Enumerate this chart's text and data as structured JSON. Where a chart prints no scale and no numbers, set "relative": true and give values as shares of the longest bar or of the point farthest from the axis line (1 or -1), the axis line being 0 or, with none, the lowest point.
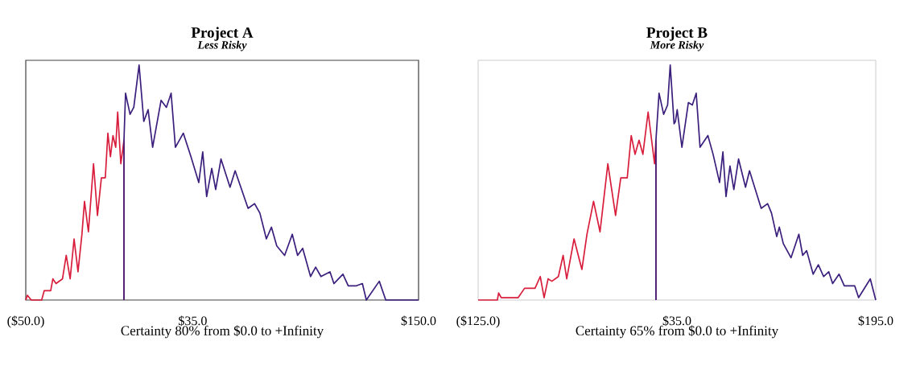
{
  "chart_data": [
    {
      "type": "line",
      "title": "Project A",
      "subtitle": "Less Risky",
      "xlabel": "Certainty 80% from $0.0 to +Infinity",
      "relative": true,
      "xlim": [
        -50,
        150
      ],
      "xticks": [
        {
          "value": -50,
          "label": "($50.0)"
        },
        {
          "value": 35,
          "label": "$35.0"
        },
        {
          "value": 150,
          "label": "$150.0"
        }
      ],
      "series": [
        {
          "color": "#d81e3c",
          "x": [
            -50,
            -49.2,
            -47.2,
            -41.9,
            -40.6,
            -37.3,
            -36.2,
            -34.6,
            -31.3,
            -29.4,
            -27.4,
            -25.4,
            -23.4,
            -21.4,
            -20.1,
            -18.1,
            -15.5,
            -13.5,
            -11.5,
            -9.5,
            -8.2,
            -6.9,
            -5.6,
            -4.2,
            -3.2,
            -1.6,
            0,
            0
          ],
          "values": [
            0,
            0.02,
            0,
            0,
            0.04,
            0.04,
            0.09,
            0.07,
            0.09,
            0.19,
            0.09,
            0.26,
            0.12,
            0.28,
            0.42,
            0.29,
            0.58,
            0.36,
            0.52,
            0.52,
            0.71,
            0.61,
            0.7,
            0.65,
            0.8,
            0.58,
            0.68,
            0
          ]
        },
        {
          "color": "#3b1f7d",
          "x": [
            0,
            0,
            0.8,
            3.1,
            5.0,
            7.7,
            10.1,
            12.3,
            14.6,
            18.9,
            21.6,
            24.0,
            26.2,
            30.2,
            34.1,
            38.1,
            40.1,
            42.1,
            44.7,
            46.7,
            49.4,
            54.0,
            56.6,
            63.2,
            66.5,
            69.2,
            72.5,
            75.1,
            77.8,
            81.8,
            85.7,
            88.4,
            91.0,
            95.0,
            97.6,
            100.3,
            104.9,
            106.9,
            111.5,
            114.2,
            118.1,
            121.4,
            123.4,
            130.0,
            133.3,
            150
          ],
          "values": [
            0,
            0.68,
            0.88,
            0.79,
            0.82,
            1.0,
            0.76,
            0.81,
            0.65,
            0.85,
            0.82,
            0.88,
            0.65,
            0.71,
            0.61,
            0.5,
            0.63,
            0.44,
            0.56,
            0.47,
            0.6,
            0.48,
            0.55,
            0.39,
            0.41,
            0.37,
            0.26,
            0.31,
            0.23,
            0.19,
            0.28,
            0.19,
            0.22,
            0.1,
            0.14,
            0.1,
            0.12,
            0.07,
            0.11,
            0.06,
            0.06,
            0.07,
            0,
            0.08,
            0,
            0
          ]
        }
      ]
    },
    {
      "type": "line",
      "title": "Project B",
      "subtitle": "More Risky",
      "xlabel": "Certainty 65% from $0.0 to +Infinity",
      "relative": true,
      "xlim": [
        -125,
        195
      ],
      "xticks": [
        {
          "value": -125,
          "label": "($125.0)"
        },
        {
          "value": 35,
          "label": "$35.0"
        },
        {
          "value": 195,
          "label": "$195.0"
        }
      ],
      "series": [
        {
          "color": "#d81e3c",
          "x": [
            -125,
            -109.5,
            -108.5,
            -106.4,
            -98.0,
            -92.8,
            -87.6,
            -83.4,
            -79.2,
            -75.0,
            -71.9,
            -68.7,
            -65.6,
            -60.4,
            -56.6,
            -53.7,
            -47.8,
            -41.5,
            -37.4,
            -32.1,
            -26.9,
            -20.6,
            -14.4,
            -10.2,
            -5.0,
            -1.8,
            1.3,
            4.5,
            7.6,
            11.8,
            17.0,
            18.1,
            18.1
          ],
          "values": [
            0,
            0,
            0.03,
            0.01,
            0.01,
            0.01,
            0.05,
            0.05,
            0.05,
            0.1,
            0.01,
            0.09,
            0.08,
            0.1,
            0.19,
            0.09,
            0.26,
            0.13,
            0.28,
            0.42,
            0.29,
            0.58,
            0.36,
            0.52,
            0.52,
            0.7,
            0.62,
            0.68,
            0.62,
            0.8,
            0.58,
            0.68,
            0
          ]
        },
        {
          "color": "#3b1f7d",
          "x": [
            18.1,
            18.1,
            20.6,
            24.3,
            27.5,
            29.6,
            32.7,
            33.8,
            35.2,
            39.0,
            44.2,
            47.4,
            50.5,
            53.6,
            59.9,
            64.1,
            69.3,
            72.0,
            74.5,
            77.7,
            80.8,
            84.6,
            90.2,
            93.4,
            102.8,
            108.0,
            111.1,
            115.3,
            117.4,
            120.6,
            126.8,
            133.1,
            136.2,
            139.4,
            144.6,
            148.8,
            153.0,
            157.2,
            160.3,
            165.5,
            169.7,
            174.9,
            178.1,
            181.2,
            190.6,
            195
          ],
          "values": [
            0,
            0.68,
            0.88,
            0.79,
            0.83,
            1.0,
            0.75,
            0.76,
            0.81,
            0.65,
            0.84,
            0.83,
            0.88,
            0.65,
            0.7,
            0.62,
            0.5,
            0.63,
            0.44,
            0.57,
            0.47,
            0.6,
            0.48,
            0.55,
            0.39,
            0.41,
            0.37,
            0.27,
            0.31,
            0.24,
            0.18,
            0.28,
            0.19,
            0.21,
            0.11,
            0.15,
            0.1,
            0.12,
            0.07,
            0.11,
            0.06,
            0.06,
            0.06,
            0.01,
            0.09,
            0
          ]
        }
      ]
    }
  ]
}
